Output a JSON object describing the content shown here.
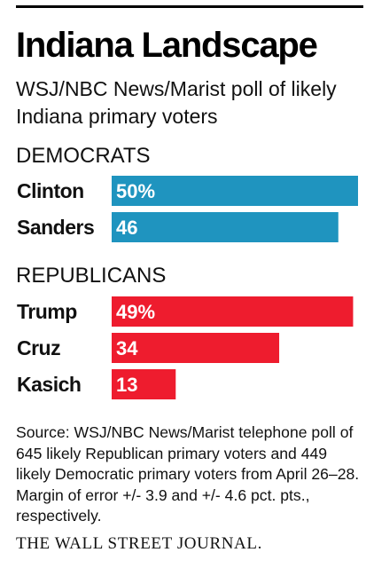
{
  "title": "Indiana Landscape",
  "subtitle": "WSJ/NBC News/Marist poll of likely Indiana primary voters",
  "colors": {
    "democrats": "#1f94bf",
    "republicans": "#ee1c2e"
  },
  "chart_data": {
    "type": "bar",
    "orientation": "horizontal",
    "unit": "%",
    "xlim": [
      0,
      50
    ],
    "groups": [
      {
        "name": "DEMOCRATS",
        "color": "#1f94bf",
        "categories": [
          "Clinton",
          "Sanders"
        ],
        "values": [
          50,
          46
        ],
        "labels": [
          "50%",
          "46"
        ]
      },
      {
        "name": "REPUBLICANS",
        "color": "#ee1c2e",
        "categories": [
          "Trump",
          "Cruz",
          "Kasich"
        ],
        "values": [
          49,
          34,
          13
        ],
        "labels": [
          "49%",
          "34",
          "13"
        ]
      }
    ]
  },
  "source": "Source: WSJ/NBC News/Marist telephone poll of 645 likely Republican primary voters and 449 likely Democratic primary voters from April 26–28. Margin of error +/- 3.9 and +/- 4.6 pct. pts., respectively.",
  "publisher": "THE WALL STREET JOURNAL."
}
